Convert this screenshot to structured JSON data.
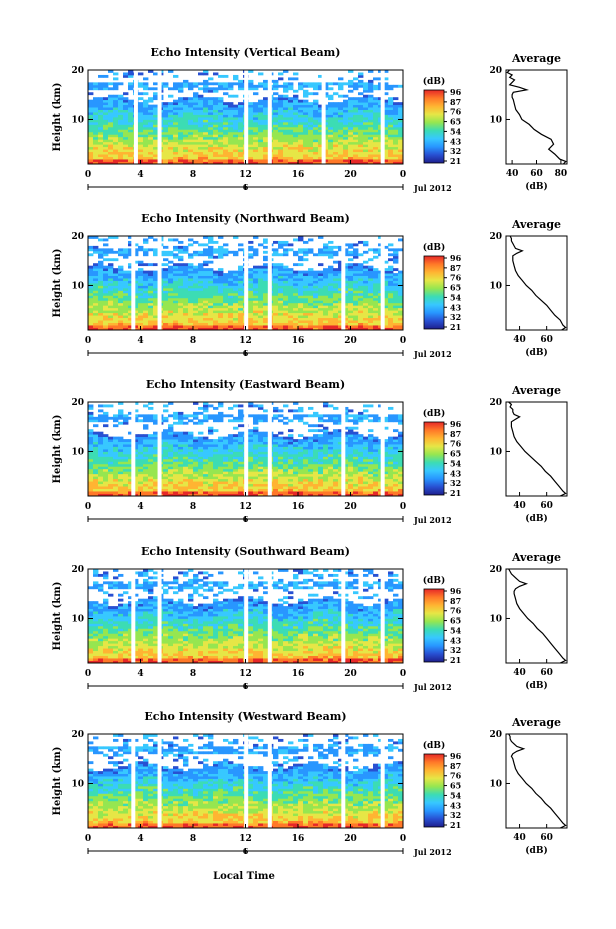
{
  "colors": {
    "colormap": [
      "#1e1e8c",
      "#2850d2",
      "#2896ff",
      "#37c8ff",
      "#3cdcb4",
      "#96e650",
      "#e6e646",
      "#ffb432",
      "#ff7828",
      "#e62828"
    ],
    "profile_line": "#000000",
    "gap": "#ffffff"
  },
  "colorbar": {
    "unit": "(dB)",
    "ticks": [
      "96",
      "87",
      "76",
      "65",
      "54",
      "43",
      "32",
      "21"
    ]
  },
  "xaxis": {
    "ticks": [
      "0",
      "4",
      "8",
      "12",
      "16",
      "20",
      "0"
    ],
    "marker": "6",
    "date": "Jul 2012",
    "label": "Local Time"
  },
  "yaxis": {
    "label": "Height (km)",
    "ticks": [
      "20",
      "10"
    ]
  },
  "profile": {
    "title": "Average",
    "xlabel": "(dB)"
  },
  "chart_data": [
    {
      "type": "heatmap",
      "title": "Echo Intensity (Vertical Beam)",
      "ylabel": "Height (km)",
      "ylim": [
        1,
        20
      ],
      "xlim": [
        0,
        24
      ],
      "colorbar_range": [
        21,
        96
      ],
      "gaps_hours": [
        3.5,
        5.3,
        11.9,
        13.7,
        17.8,
        22.3
      ],
      "profile": {
        "xticks": [
          "40",
          "60",
          "80"
        ],
        "xlim": [
          35,
          85
        ],
        "heights": [
          20,
          19.5,
          19,
          18.5,
          18,
          17.5,
          17,
          16.5,
          16,
          15.5,
          15,
          14.5,
          14,
          13,
          12,
          11,
          10,
          9,
          8,
          7,
          6,
          5,
          4,
          3,
          2,
          1.5,
          1
        ],
        "values": [
          38,
          36,
          40,
          38,
          42,
          40,
          38,
          46,
          52,
          41,
          40,
          40,
          41,
          42,
          43,
          46,
          48,
          54,
          58,
          64,
          72,
          74,
          70,
          75,
          79,
          84,
          82
        ]
      }
    },
    {
      "type": "heatmap",
      "title": "Echo Intensity (Northward Beam)",
      "ylabel": "Height (km)",
      "ylim": [
        1,
        20
      ],
      "xlim": [
        0,
        24
      ],
      "colorbar_range": [
        21,
        96
      ],
      "gaps_hours": [
        3.3,
        5.3,
        11.9,
        13.7,
        19.3,
        22.3
      ],
      "profile": {
        "xticks": [
          "40",
          "60"
        ],
        "xlim": [
          30,
          75
        ],
        "heights": [
          20,
          19.5,
          19,
          18.5,
          18,
          17.5,
          17,
          16.5,
          16,
          15.5,
          15,
          14,
          13,
          12,
          11,
          10,
          9,
          8,
          7,
          6,
          5,
          4,
          3,
          2,
          1.5,
          1
        ],
        "values": [
          33,
          34,
          34,
          35,
          36,
          37,
          42,
          38,
          35,
          35,
          35,
          36,
          37,
          39,
          42,
          45,
          49,
          52,
          56,
          60,
          63,
          66,
          70,
          72,
          74,
          71
        ]
      }
    },
    {
      "type": "heatmap",
      "title": "Echo Intensity (Eastward Beam)",
      "ylabel": "Height (km)",
      "ylim": [
        1,
        20
      ],
      "xlim": [
        0,
        24
      ],
      "colorbar_range": [
        21,
        96
      ],
      "gaps_hours": [
        3.3,
        5.3,
        11.9,
        13.7,
        19.3,
        22.3
      ],
      "profile": {
        "xticks": [
          "40",
          "60"
        ],
        "xlim": [
          30,
          75
        ],
        "heights": [
          20,
          19.5,
          19,
          18.5,
          18,
          17.5,
          17,
          16.5,
          16,
          15.5,
          15,
          14,
          13,
          12,
          11,
          10,
          9,
          8,
          7,
          6,
          5,
          4,
          3,
          2,
          1.5,
          1
        ],
        "values": [
          32,
          34,
          33,
          35,
          35,
          36,
          40,
          37,
          34,
          34,
          34,
          35,
          36,
          38,
          41,
          44,
          48,
          52,
          56,
          59,
          63,
          66,
          69,
          72,
          74,
          70
        ]
      }
    },
    {
      "type": "heatmap",
      "title": "Echo Intensity (Southward Beam)",
      "ylabel": "Height (km)",
      "ylim": [
        1,
        20
      ],
      "xlim": [
        0,
        24
      ],
      "colorbar_range": [
        21,
        96
      ],
      "gaps_hours": [
        3.3,
        5.3,
        11.9,
        13.7,
        19.3,
        22.3
      ],
      "profile": {
        "xticks": [
          "40",
          "60"
        ],
        "xlim": [
          30,
          75
        ],
        "heights": [
          20,
          19.5,
          19,
          18.5,
          18,
          17.5,
          17,
          16.5,
          16,
          15.5,
          15,
          14,
          13,
          12,
          11,
          10,
          9,
          8,
          7,
          6,
          5,
          4,
          3,
          2,
          1.5,
          1
        ],
        "values": [
          32,
          33,
          34,
          36,
          38,
          40,
          45,
          40,
          37,
          36,
          36,
          37,
          38,
          40,
          43,
          46,
          50,
          53,
          57,
          60,
          63,
          66,
          69,
          72,
          74,
          70
        ]
      }
    },
    {
      "type": "heatmap",
      "title": "Echo Intensity (Westward Beam)",
      "ylabel": "Height (km)",
      "ylim": [
        1,
        20
      ],
      "xlim": [
        0,
        24
      ],
      "colorbar_range": [
        21,
        96
      ],
      "gaps_hours": [
        3.3,
        5.3,
        11.9,
        13.7,
        19.3,
        22.3
      ],
      "profile": {
        "xticks": [
          "40",
          "60"
        ],
        "xlim": [
          30,
          75
        ],
        "heights": [
          20,
          19.5,
          19,
          18.5,
          18,
          17.5,
          17,
          16.5,
          16,
          15.5,
          15,
          14,
          13,
          12,
          11,
          10,
          9,
          8,
          7,
          6,
          5,
          4,
          3,
          2,
          1.5,
          1
        ],
        "values": [
          32,
          33,
          33,
          34,
          36,
          38,
          43,
          38,
          35,
          34,
          35,
          36,
          37,
          39,
          42,
          45,
          49,
          52,
          56,
          59,
          63,
          66,
          69,
          72,
          74,
          70
        ]
      }
    }
  ]
}
